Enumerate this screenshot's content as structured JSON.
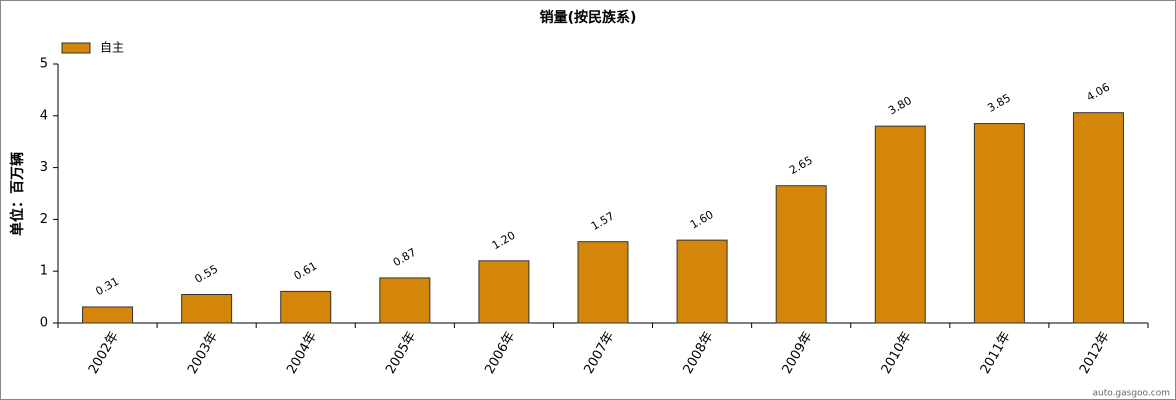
{
  "chart_data": {
    "type": "bar",
    "title": "销量(按民族系)",
    "y_label": "单位：百万辆",
    "categories": [
      "2002年",
      "2003年",
      "2004年",
      "2005年",
      "2006年",
      "2007年",
      "2008年",
      "2009年",
      "2010年",
      "2011年",
      "2012年"
    ],
    "series": [
      {
        "name": "自主",
        "color": "#d4860b",
        "values": [
          0.31,
          0.55,
          0.61,
          0.87,
          1.2,
          1.57,
          1.6,
          2.65,
          3.8,
          3.85,
          4.06
        ],
        "value_labels": [
          "0.31",
          "0.55",
          "0.61",
          "0.87",
          "1.20",
          "1.57",
          "1.60",
          "2.65",
          "3.80",
          "3.85",
          "4.06"
        ]
      }
    ],
    "ylim": [
      0,
      5
    ],
    "yticks": [
      0,
      1,
      2,
      3,
      4,
      5
    ],
    "grid": false,
    "legend": "top-left",
    "watermark": "auto.gasgoo.com"
  }
}
